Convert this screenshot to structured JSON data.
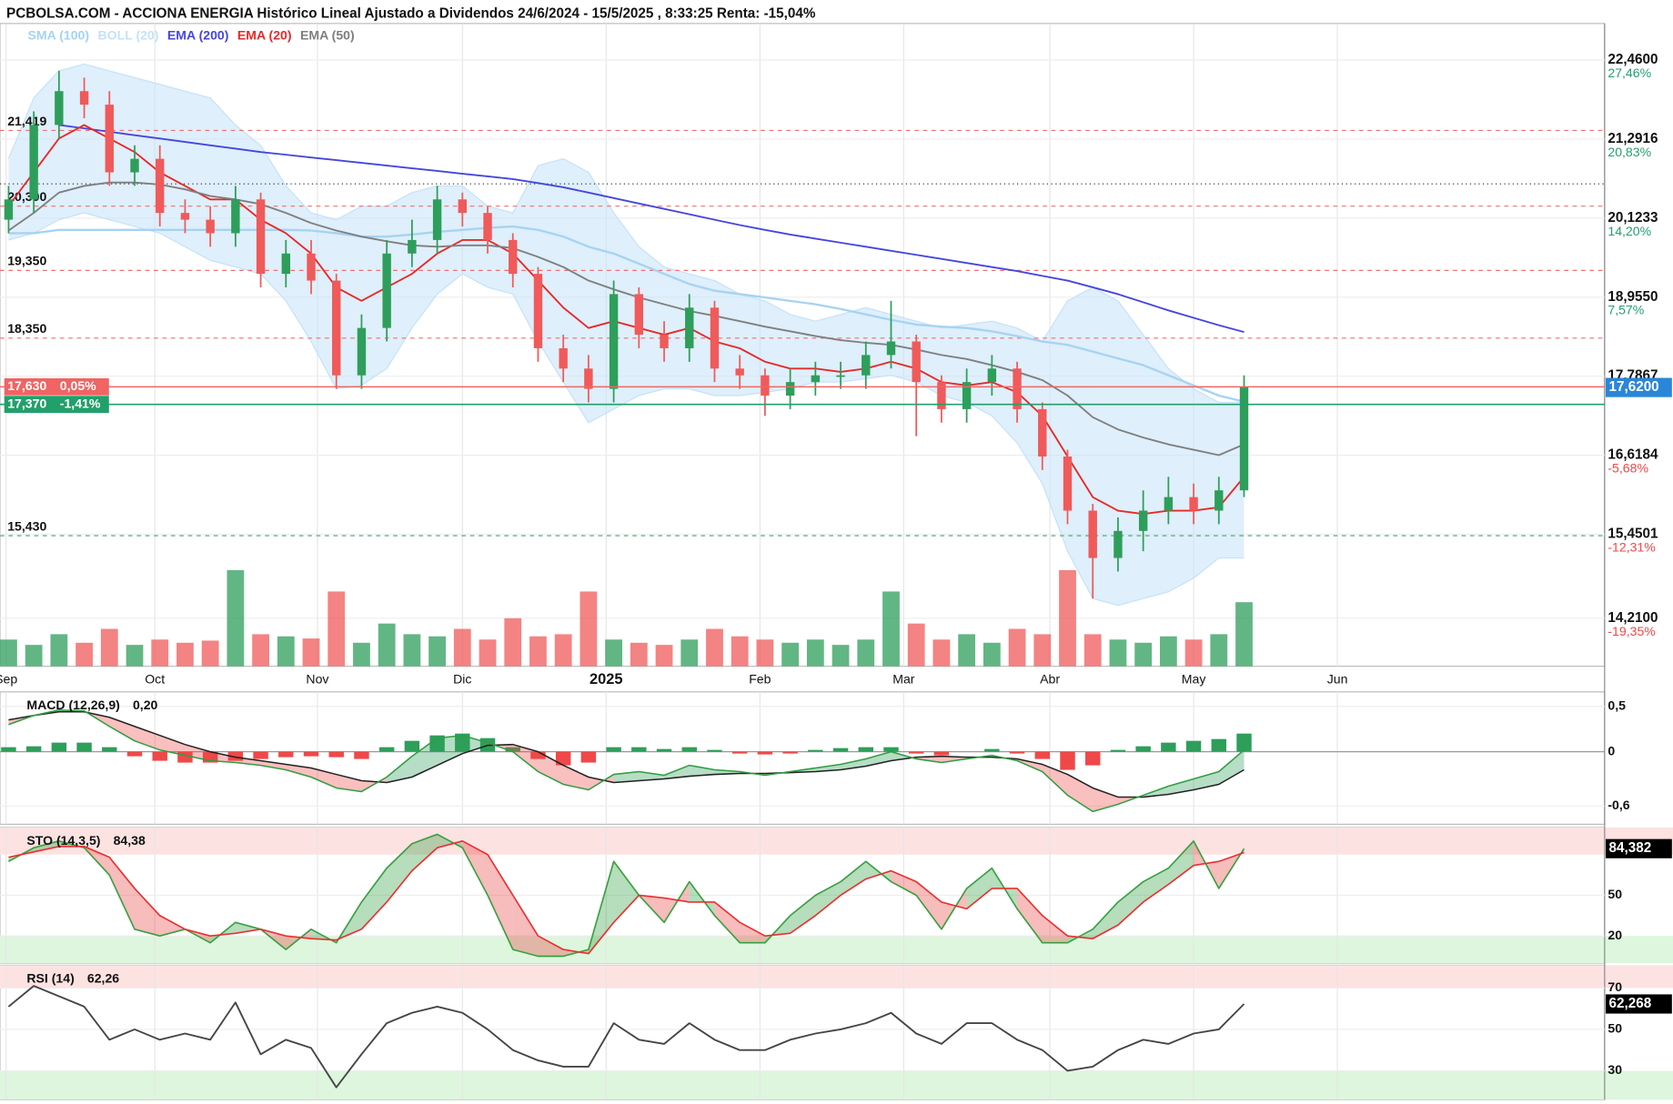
{
  "chart_data": [
    {
      "type": "candlestick",
      "title": "PCBOLSA.COM - ACCIONA ENERGIA Histórico Lineal Ajustado a Dividendos 24/6/2024 - 15/5/2025 , 8:33:25 Renta: -15,04%",
      "open": [
        20.1,
        20.4,
        21.5,
        22.0,
        21.8,
        20.8,
        21.0,
        20.2,
        20.1,
        19.9,
        20.4,
        19.3,
        19.6,
        19.2,
        17.8,
        18.5,
        19.6,
        19.8,
        20.4,
        20.2,
        19.8,
        19.3,
        18.2,
        17.9,
        17.6,
        19.0,
        18.4,
        18.2,
        18.8,
        17.9,
        17.8,
        17.5,
        17.7,
        17.8,
        17.8,
        18.1,
        18.3,
        17.7,
        17.3,
        17.7,
        17.9,
        17.3,
        16.6,
        15.8,
        15.1,
        15.5,
        15.8,
        16.0,
        15.8,
        16.1
      ],
      "high": [
        20.6,
        21.7,
        22.3,
        22.2,
        22.0,
        21.2,
        21.2,
        20.4,
        20.3,
        20.6,
        20.5,
        19.8,
        19.8,
        19.3,
        18.7,
        19.8,
        20.1,
        20.6,
        20.5,
        20.3,
        19.9,
        19.4,
        18.4,
        18.1,
        19.2,
        19.1,
        18.6,
        19.0,
        18.9,
        18.1,
        17.9,
        17.9,
        18.0,
        18.0,
        18.3,
        18.9,
        18.4,
        17.8,
        17.9,
        18.1,
        18.0,
        17.4,
        16.7,
        15.9,
        15.7,
        16.1,
        16.3,
        16.2,
        16.3,
        17.8
      ],
      "low": [
        19.9,
        20.2,
        21.3,
        21.6,
        20.6,
        20.6,
        20.0,
        19.9,
        19.7,
        19.7,
        19.1,
        19.1,
        19.0,
        17.6,
        17.6,
        18.3,
        19.4,
        19.6,
        20.0,
        19.6,
        19.1,
        18.0,
        17.7,
        17.4,
        17.4,
        18.2,
        18.0,
        18.0,
        17.7,
        17.6,
        17.2,
        17.3,
        17.5,
        17.6,
        17.6,
        17.9,
        16.9,
        17.1,
        17.1,
        17.5,
        17.1,
        16.4,
        15.6,
        14.5,
        14.9,
        15.2,
        15.6,
        15.6,
        15.6,
        16.0
      ],
      "close": [
        20.4,
        21.5,
        22.0,
        21.8,
        20.8,
        21.0,
        20.2,
        20.1,
        19.9,
        20.4,
        19.3,
        19.6,
        19.2,
        17.8,
        18.5,
        19.6,
        19.8,
        20.4,
        20.2,
        19.8,
        19.3,
        18.2,
        17.9,
        17.6,
        19.0,
        18.4,
        18.2,
        18.8,
        17.9,
        17.8,
        17.5,
        17.7,
        17.8,
        17.8,
        18.1,
        18.3,
        17.7,
        17.3,
        17.7,
        17.9,
        17.3,
        16.6,
        15.8,
        15.1,
        15.5,
        15.8,
        16.0,
        15.8,
        16.1,
        17.63
      ],
      "up_color": "#2e9e5b",
      "down_color": "#f05a5a",
      "series": [
        {
          "name": "SMA (100)",
          "color": "#a6d3f2",
          "values": [
            19.9,
            19.9,
            19.95,
            19.95,
            19.95,
            19.95,
            19.95,
            19.95,
            19.95,
            19.95,
            19.95,
            19.95,
            19.94,
            19.9,
            19.85,
            19.85,
            19.88,
            19.92,
            19.95,
            19.98,
            20.0,
            19.95,
            19.85,
            19.7,
            19.6,
            19.45,
            19.3,
            19.15,
            19.05,
            19.0,
            18.95,
            18.9,
            18.85,
            18.78,
            18.7,
            18.62,
            18.55,
            18.52,
            18.5,
            18.45,
            18.38,
            18.3,
            18.25,
            18.15,
            18.05,
            17.95,
            17.8,
            17.65,
            17.5,
            17.41
          ]
        },
        {
          "name": "BOLL (20)",
          "color": "#c4e2f7",
          "upper": [
            21.0,
            21.9,
            22.3,
            22.4,
            22.3,
            22.2,
            22.1,
            22.0,
            21.9,
            21.5,
            21.2,
            20.6,
            20.2,
            20.1,
            20.3,
            20.3,
            20.5,
            20.6,
            20.6,
            20.3,
            20.2,
            20.9,
            21.0,
            20.8,
            20.2,
            19.7,
            19.4,
            19.3,
            19.2,
            19.0,
            18.9,
            18.7,
            18.6,
            18.7,
            18.8,
            18.7,
            18.6,
            18.5,
            18.55,
            18.6,
            18.5,
            18.3,
            18.9,
            19.1,
            18.9,
            18.4,
            17.9,
            17.6,
            17.4,
            17.4
          ],
          "lower": [
            19.8,
            19.9,
            20.1,
            20.2,
            20.1,
            20.0,
            19.9,
            19.7,
            19.5,
            19.4,
            19.3,
            18.9,
            18.3,
            17.6,
            17.65,
            17.9,
            18.5,
            19.0,
            19.3,
            19.1,
            19.0,
            18.3,
            17.7,
            17.1,
            17.3,
            17.5,
            17.6,
            17.6,
            17.5,
            17.5,
            17.55,
            17.6,
            17.7,
            17.7,
            17.75,
            17.8,
            17.7,
            17.5,
            17.4,
            17.2,
            16.8,
            16.2,
            15.2,
            14.5,
            14.4,
            14.5,
            14.6,
            14.8,
            15.1,
            15.1
          ]
        },
        {
          "name": "EMA (200)",
          "color": "#4646dc",
          "values": [
            null,
            null,
            21.5,
            21.45,
            21.4,
            21.35,
            21.3,
            21.25,
            21.2,
            21.15,
            21.1,
            21.06,
            21.02,
            20.98,
            20.94,
            20.9,
            20.86,
            20.82,
            20.78,
            20.74,
            20.7,
            20.64,
            20.58,
            20.5,
            20.42,
            20.34,
            20.26,
            20.18,
            20.1,
            20.02,
            19.95,
            19.88,
            19.82,
            19.76,
            19.7,
            19.64,
            19.58,
            19.52,
            19.46,
            19.4,
            19.34,
            19.27,
            19.2,
            19.1,
            19.0,
            18.88,
            18.76,
            18.65,
            18.54,
            18.44
          ]
        },
        {
          "name": "EMA (20)",
          "color": "#e52a2a",
          "values": [
            20.3,
            20.8,
            21.3,
            21.5,
            21.3,
            21.1,
            20.8,
            20.6,
            20.4,
            20.4,
            20.1,
            19.9,
            19.6,
            19.1,
            18.9,
            19.1,
            19.3,
            19.6,
            19.8,
            19.8,
            19.6,
            19.2,
            18.8,
            18.5,
            18.6,
            18.5,
            18.4,
            18.5,
            18.3,
            18.2,
            18.0,
            17.9,
            17.9,
            17.85,
            17.9,
            18.0,
            17.9,
            17.7,
            17.65,
            17.7,
            17.55,
            17.2,
            16.6,
            16.0,
            15.8,
            15.75,
            15.8,
            15.8,
            15.85,
            16.3
          ]
        },
        {
          "name": "EMA (50)",
          "color": "#7f7f7f",
          "values": [
            19.94,
            20.2,
            20.5,
            20.6,
            20.65,
            20.65,
            20.62,
            20.55,
            20.45,
            20.4,
            20.33,
            20.2,
            20.05,
            19.94,
            19.85,
            19.78,
            19.72,
            19.7,
            19.72,
            19.72,
            19.68,
            19.55,
            19.4,
            19.2,
            19.07,
            18.95,
            18.85,
            18.75,
            18.68,
            18.6,
            18.52,
            18.45,
            18.38,
            18.32,
            18.28,
            18.25,
            18.18,
            18.1,
            18.04,
            17.95,
            17.85,
            17.73,
            17.5,
            17.18,
            17.0,
            16.88,
            16.78,
            16.7,
            16.62,
            16.78
          ]
        }
      ],
      "volume": {
        "values": [
          25,
          20,
          30,
          22,
          35,
          20,
          25,
          22,
          24,
          90,
          30,
          28,
          26,
          70,
          22,
          40,
          30,
          28,
          35,
          25,
          45,
          28,
          30,
          70,
          25,
          22,
          20,
          25,
          35,
          28,
          25,
          22,
          25,
          20,
          25,
          70,
          40,
          25,
          30,
          22,
          35,
          30,
          90,
          30,
          25,
          22,
          28,
          25,
          30,
          60
        ],
        "ylim": [
          0,
          100
        ]
      },
      "xlim": [
        -0.34,
        63.3
      ],
      "xticks": [
        {
          "value": -0.1,
          "label": "Sep"
        },
        {
          "value": 5.8,
          "label": "Oct"
        },
        {
          "value": 12.25,
          "label": "Nov"
        },
        {
          "value": 18.0,
          "label": "Dic"
        },
        {
          "value": 23.7,
          "label": "2025"
        },
        {
          "value": 29.8,
          "label": "Feb"
        },
        {
          "value": 35.5,
          "label": "Mar"
        },
        {
          "value": 41.3,
          "label": "Abr"
        },
        {
          "value": 47.0,
          "label": "May"
        },
        {
          "value": 52.7,
          "label": "Jun"
        }
      ],
      "ylim": [
        13.5,
        23.0
      ],
      "yticks": [
        {
          "value": 22.46,
          "label": "22,4600"
        },
        {
          "value": 21.2916,
          "label": "21,2916"
        },
        {
          "value": 20.1233,
          "label": "20,1233"
        },
        {
          "value": 18.955,
          "label": "18,9550"
        },
        {
          "value": 17.7867,
          "label": "17,7867"
        },
        {
          "value": 16.6184,
          "label": "16,6184"
        },
        {
          "value": 15.4501,
          "label": "15,4501"
        },
        {
          "value": 14.21,
          "label": "14,2100"
        }
      ],
      "ytick_pct": [
        "27,46%",
        "20,83%",
        "14,20%",
        "7,57%",
        null,
        "-5,68%",
        "-12,31%",
        "-19,35%"
      ],
      "levels": [
        {
          "value": 21.419,
          "label": "21,419",
          "color": "#f07070"
        },
        {
          "value": 20.3,
          "label": "20,300",
          "color": "#f07070"
        },
        {
          "value": 19.35,
          "label": "19,350",
          "color": "#f07070"
        },
        {
          "value": 18.35,
          "label": "18,350",
          "color": "#f07070"
        },
        {
          "value": 15.43,
          "label": "15,430",
          "color": "#3aa86a"
        }
      ],
      "reference_line": 20.63,
      "price_markers": [
        {
          "value": 17.63,
          "label": "17,630",
          "change": "0,05%",
          "color": "#f06464"
        },
        {
          "value": 17.37,
          "label": "17,370",
          "change": "-1,41%",
          "color": "#22a06b"
        }
      ],
      "last_price": {
        "value": 17.62,
        "label": "17,6200",
        "color": "#2a86d8"
      }
    },
    {
      "type": "macd",
      "title": "MACD (12,26,9)",
      "value_label": "0,20",
      "macd": [
        0.3,
        0.4,
        0.46,
        0.45,
        0.28,
        0.12,
        0.02,
        -0.04,
        -0.1,
        -0.12,
        -0.15,
        -0.2,
        -0.28,
        -0.4,
        -0.44,
        -0.28,
        -0.05,
        0.15,
        0.18,
        0.1,
        0.0,
        -0.22,
        -0.36,
        -0.42,
        -0.25,
        -0.22,
        -0.26,
        -0.15,
        -0.2,
        -0.22,
        -0.26,
        -0.22,
        -0.18,
        -0.14,
        -0.08,
        0.0,
        -0.08,
        -0.12,
        -0.08,
        -0.04,
        -0.1,
        -0.22,
        -0.48,
        -0.66,
        -0.58,
        -0.48,
        -0.38,
        -0.3,
        -0.22,
        0.02
      ],
      "signal": [
        0.35,
        0.4,
        0.44,
        0.44,
        0.38,
        0.28,
        0.18,
        0.08,
        0.0,
        -0.06,
        -0.1,
        -0.14,
        -0.18,
        -0.25,
        -0.32,
        -0.34,
        -0.28,
        -0.15,
        -0.02,
        0.07,
        0.08,
        0.0,
        -0.15,
        -0.28,
        -0.34,
        -0.32,
        -0.3,
        -0.27,
        -0.25,
        -0.24,
        -0.24,
        -0.23,
        -0.22,
        -0.2,
        -0.16,
        -0.1,
        -0.06,
        -0.05,
        -0.06,
        -0.06,
        -0.08,
        -0.14,
        -0.25,
        -0.4,
        -0.5,
        -0.5,
        -0.47,
        -0.42,
        -0.36,
        -0.2
      ],
      "histogram": [
        0.05,
        0.06,
        0.1,
        0.1,
        0.05,
        -0.05,
        -0.1,
        -0.12,
        -0.12,
        -0.1,
        -0.08,
        -0.06,
        -0.05,
        -0.06,
        -0.08,
        0.05,
        0.12,
        0.18,
        0.2,
        0.15,
        0.05,
        -0.08,
        -0.15,
        -0.12,
        0.05,
        0.05,
        0.03,
        0.05,
        0.02,
        -0.02,
        -0.03,
        -0.02,
        0.02,
        0.04,
        0.05,
        0.05,
        -0.02,
        -0.04,
        0.0,
        0.03,
        -0.02,
        -0.08,
        -0.2,
        -0.15,
        0.02,
        0.06,
        0.1,
        0.12,
        0.14,
        0.2
      ],
      "macd_color": "#2e9e40",
      "signal_color": "#222222",
      "up_color": "#2e9e5b",
      "down_color": "#f04848",
      "ylim": [
        -0.8,
        0.66
      ],
      "yticks": [
        {
          "value": 0.5,
          "label": "0,5"
        },
        0,
        {
          "value": -0.6,
          "label": "-0,6"
        }
      ],
      "ytick_colors": [
        "#e02020",
        "#111111",
        "#1f8a3a"
      ]
    },
    {
      "type": "stochastic",
      "title": "STO (14,3,5)",
      "value_label": "84,38",
      "last_label": "84,382",
      "k": [
        75,
        85,
        90,
        85,
        65,
        25,
        20,
        25,
        15,
        30,
        25,
        10,
        25,
        15,
        45,
        70,
        88,
        95,
        85,
        50,
        10,
        5,
        5,
        10,
        75,
        50,
        30,
        60,
        35,
        15,
        15,
        35,
        50,
        60,
        75,
        60,
        50,
        25,
        55,
        70,
        40,
        15,
        15,
        25,
        45,
        60,
        70,
        90,
        55,
        84.382
      ],
      "d": [
        78,
        82,
        86,
        86,
        78,
        55,
        35,
        25,
        20,
        22,
        25,
        20,
        18,
        17,
        25,
        45,
        68,
        85,
        90,
        80,
        50,
        20,
        10,
        7,
        30,
        50,
        48,
        45,
        45,
        30,
        20,
        22,
        35,
        50,
        62,
        68,
        60,
        45,
        40,
        55,
        55,
        35,
        20,
        18,
        28,
        45,
        58,
        72,
        75,
        81.5
      ],
      "k_color": "#38a040",
      "d_color": "#e83030",
      "zones": [
        {
          "from": 80,
          "to": 100,
          "color": "#fde2e2"
        },
        {
          "from": 0,
          "to": 20,
          "color": "#ddf6dd"
        }
      ],
      "ylim": [
        0,
        100
      ],
      "yticks": [
        50,
        20
      ],
      "ytick_colors": [
        "#111111",
        "#1f8a3a"
      ]
    },
    {
      "type": "rsi",
      "title": "RSI (14)",
      "value_label": "62,26",
      "last_label": "62,268",
      "values": [
        61,
        71,
        66,
        61,
        45,
        50,
        45,
        48,
        45,
        63,
        38,
        45,
        41,
        22,
        38,
        53,
        58,
        61,
        58,
        50,
        40,
        35,
        32,
        32,
        53,
        45,
        43,
        53,
        45,
        40,
        40,
        45,
        48,
        50,
        53,
        58,
        48,
        43,
        53,
        53,
        45,
        40,
        30,
        32,
        40,
        45,
        43,
        48,
        50,
        62.268
      ],
      "color": "#454545",
      "zones": [
        {
          "from": 70,
          "to": 81,
          "color": "#fde2e2"
        },
        {
          "from": 16,
          "to": 30,
          "color": "#ddf6dd"
        }
      ],
      "ylim": [
        16,
        81
      ],
      "yticks": [
        70,
        50,
        30
      ],
      "ytick_colors": [
        "#e02020",
        "#111111",
        "#1f8a3a"
      ]
    }
  ]
}
